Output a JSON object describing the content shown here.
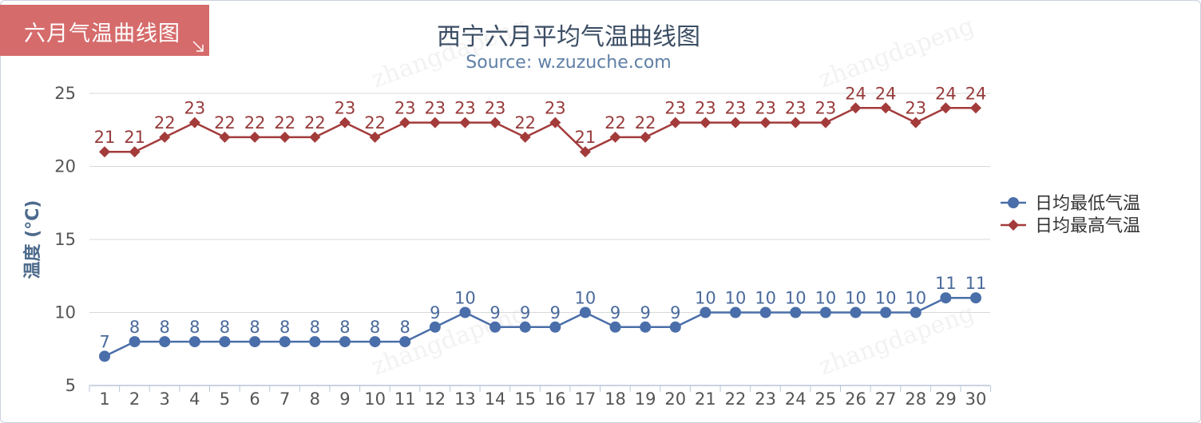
{
  "tab": {
    "label": "六月气温曲线图"
  },
  "chart_data": {
    "type": "line",
    "title": "西宁六月平均气温曲线图",
    "subtitle": "Source: w.zuzuche.com",
    "ylabel": "温度 (°C)",
    "xlabel": "",
    "ylim": [
      5,
      25
    ],
    "yticks": [
      5,
      10,
      15,
      20,
      25
    ],
    "grid": true,
    "legend": "right",
    "categories": [
      "1",
      "2",
      "3",
      "4",
      "5",
      "6",
      "7",
      "8",
      "9",
      "10",
      "11",
      "12",
      "13",
      "14",
      "15",
      "16",
      "17",
      "18",
      "19",
      "20",
      "21",
      "22",
      "23",
      "24",
      "25",
      "26",
      "27",
      "28",
      "29",
      "30"
    ],
    "series": [
      {
        "name": "日均最低气温",
        "marker": "circle",
        "color": "#4a6ea9",
        "values": [
          7,
          8,
          8,
          8,
          8,
          8,
          8,
          8,
          8,
          8,
          8,
          9,
          10,
          9,
          9,
          9,
          10,
          9,
          9,
          9,
          10,
          10,
          10,
          10,
          10,
          10,
          10,
          10,
          11,
          11
        ]
      },
      {
        "name": "日均最高气温",
        "marker": "diamond",
        "color": "#a33b3b",
        "values": [
          21,
          21,
          22,
          23,
          22,
          22,
          22,
          22,
          23,
          22,
          23,
          23,
          23,
          23,
          22,
          23,
          21,
          22,
          22,
          23,
          23,
          23,
          23,
          23,
          23,
          24,
          24,
          23,
          24,
          24
        ]
      }
    ]
  }
}
